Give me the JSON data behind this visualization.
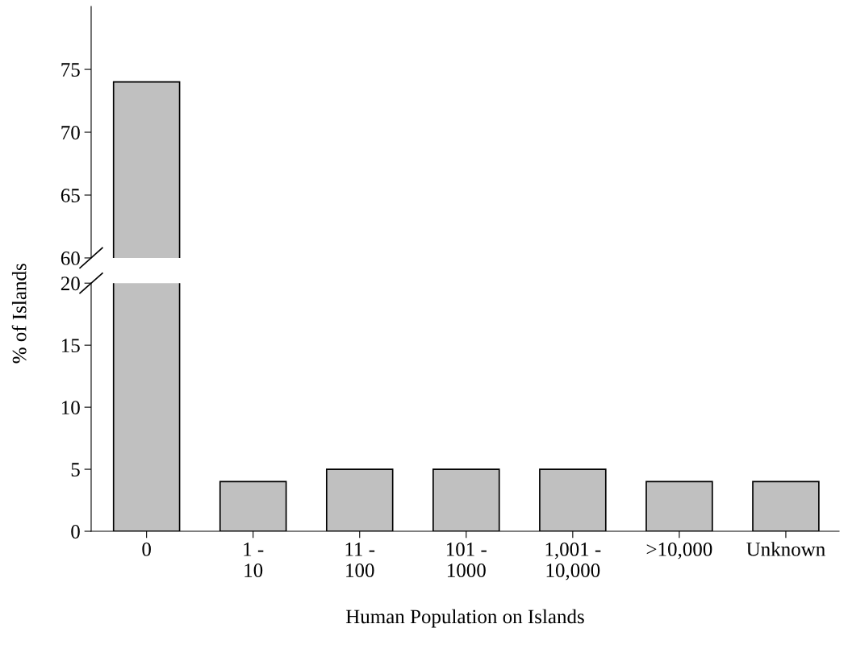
{
  "chart_data": [
    {
      "type": "bar",
      "ylabel": "% of Islands",
      "values": [
        74,
        null,
        null,
        null,
        null,
        null,
        null
      ],
      "color": "#c0c0c0",
      "ylim": [
        60,
        80
      ],
      "yticks": [
        60,
        65,
        70,
        75
      ],
      "tick_labels": "y",
      "grid": false
    },
    {
      "type": "bar",
      "xlabel": "Human Population on Islands",
      "categories": [
        "0",
        "1 -\n10",
        "11 -\n100",
        "101 -\n1000",
        "1,001 -\n10,000",
        ">10,000",
        "Unknown"
      ],
      "values": [
        null,
        4,
        5,
        5,
        5,
        4,
        4
      ],
      "color": "#c0c0c0",
      "ylim": [
        0,
        20
      ],
      "yticks": [
        0,
        5,
        10,
        15,
        20
      ],
      "grid": false
    }
  ]
}
